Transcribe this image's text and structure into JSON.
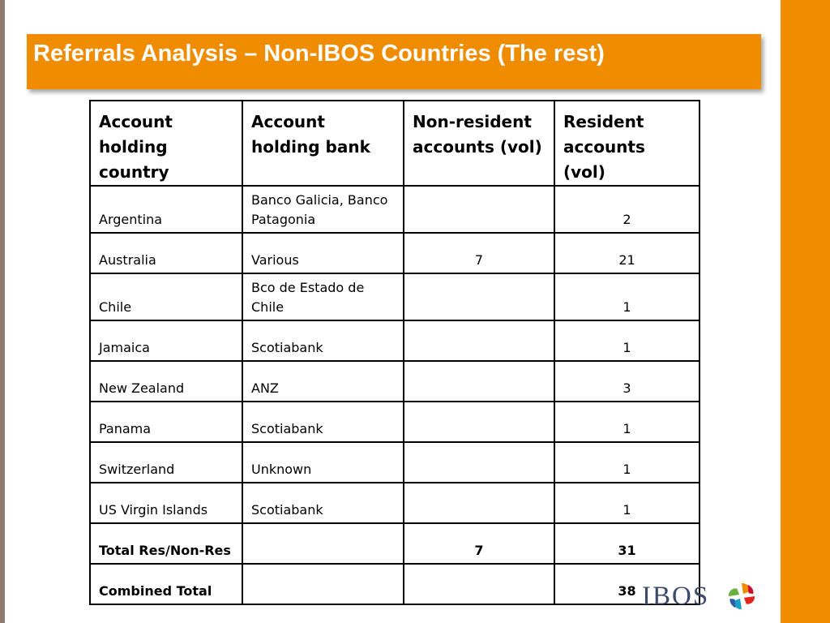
{
  "slide": {
    "title": "Referrals Analysis – Non-IBOS Countries (The rest)",
    "colors": {
      "accent": "#f08c00",
      "left_strip": "#8c7b6e",
      "title_text": "#ffffff"
    }
  },
  "table": {
    "headers": [
      "Account holding country",
      "Account holding bank",
      "Non-resident accounts (vol)",
      "Resident accounts (vol)"
    ],
    "rows": [
      {
        "country": "Argentina",
        "bank": "Banco Galicia, Banco Patagonia",
        "nonres": "",
        "res": "2"
      },
      {
        "country": "Australia",
        "bank": "Various",
        "nonres": "7",
        "res": "21"
      },
      {
        "country": "Chile",
        "bank": "Bco de Estado de Chile",
        "nonres": "",
        "res": "1"
      },
      {
        "country": "Jamaica",
        "bank": "Scotiabank",
        "nonres": "",
        "res": "1"
      },
      {
        "country": "New Zealand",
        "bank": "ANZ",
        "nonres": "",
        "res": "3"
      },
      {
        "country": "Panama",
        "bank": "Scotiabank",
        "nonres": "",
        "res": "1"
      },
      {
        "country": "Switzerland",
        "bank": "Unknown",
        "nonres": "",
        "res": "1"
      },
      {
        "country": "US Virgin Islands",
        "bank": "Scotiabank",
        "nonres": "",
        "res": "1"
      },
      {
        "country": "Total Res/Non-Res",
        "bank": "",
        "nonres": "7",
        "res": "31"
      },
      {
        "country": "Combined Total",
        "bank": "",
        "nonres": "",
        "res": "38"
      }
    ]
  },
  "logo": {
    "text": "IBOS",
    "icon": "ibos-logo-mark-icon"
  }
}
